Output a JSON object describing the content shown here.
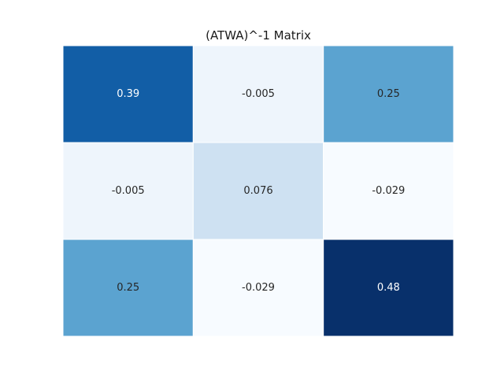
{
  "chart_data": {
    "type": "heatmap",
    "title": "(ATWA)^-1 Matrix",
    "xlabel": "",
    "ylabel": "",
    "colormap": "Blues",
    "value_range": [
      -0.029,
      0.48
    ],
    "show_axes": false,
    "show_colorbar": false,
    "grid": false,
    "rows": [
      [
        {
          "value": 0.39,
          "label": "0.39"
        },
        {
          "value": -0.005,
          "label": "-0.005"
        },
        {
          "value": 0.25,
          "label": "0.25"
        }
      ],
      [
        {
          "value": -0.005,
          "label": "-0.005"
        },
        {
          "value": 0.076,
          "label": "0.076"
        },
        {
          "value": -0.029,
          "label": "-0.029"
        }
      ],
      [
        {
          "value": 0.25,
          "label": "0.25"
        },
        {
          "value": -0.029,
          "label": "-0.029"
        },
        {
          "value": 0.48,
          "label": "0.48"
        }
      ]
    ]
  }
}
